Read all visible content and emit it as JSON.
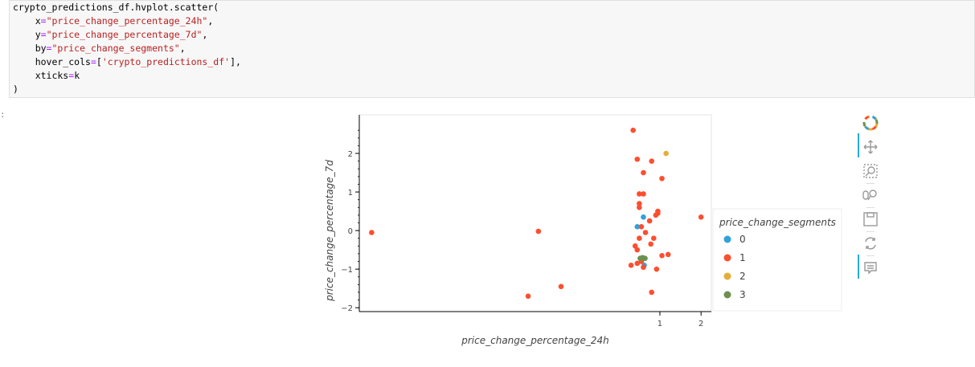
{
  "code": {
    "lines": [
      "crypto_predictions_df.hvplot.scatter(",
      "    x=\"price_change_percentage_24h\",",
      "    y=\"price_change_percentage_7d\",",
      "    by=\"price_change_segments\",",
      "    hover_cols=['crypto_predictions_df'],",
      "    xticks=k",
      ")"
    ]
  },
  "output_prompt": ":",
  "colors": {
    "0": "#30a2da",
    "1": "#fc4f30",
    "2": "#e5ae38",
    "3": "#6d904f"
  },
  "chart_data": {
    "type": "scatter",
    "xlabel": "price_change_percentage_24h",
    "ylabel": "price_change_percentage_7d",
    "xlim": [
      -6.3,
      2.25
    ],
    "ylim": [
      -2.1,
      3.0
    ],
    "xticks": [
      1,
      2
    ],
    "yticks": [
      -2,
      -1,
      0,
      1,
      2
    ],
    "legend_title": "price_change_segments",
    "series": [
      {
        "name": "0",
        "points": [
          [
            0.45,
            0.1
          ],
          [
            0.6,
            0.35
          ],
          [
            0.62,
            -0.9
          ]
        ]
      },
      {
        "name": "1",
        "points": [
          [
            -6.0,
            -0.05
          ],
          [
            -1.95,
            -0.02
          ],
          [
            -2.2,
            -1.7
          ],
          [
            -1.4,
            -1.45
          ],
          [
            0.45,
            1.85
          ],
          [
            0.8,
            1.8
          ],
          [
            0.35,
            2.6
          ],
          [
            0.6,
            1.5
          ],
          [
            0.55,
            0.1
          ],
          [
            0.5,
            0.95
          ],
          [
            0.6,
            0.95
          ],
          [
            0.5,
            0.7
          ],
          [
            0.5,
            0.6
          ],
          [
            0.75,
            0.25
          ],
          [
            0.9,
            0.4
          ],
          [
            0.95,
            0.45
          ],
          [
            0.95,
            0.5
          ],
          [
            1.05,
            1.35
          ],
          [
            2.0,
            0.35
          ],
          [
            0.4,
            -0.4
          ],
          [
            0.45,
            -0.85
          ],
          [
            0.55,
            -0.8
          ],
          [
            0.3,
            -0.9
          ],
          [
            0.5,
            -0.2
          ],
          [
            0.45,
            -0.5
          ],
          [
            0.65,
            -0.05
          ],
          [
            0.78,
            -0.35
          ],
          [
            0.85,
            -0.2
          ],
          [
            1.05,
            -0.65
          ],
          [
            1.2,
            -0.62
          ],
          [
            0.92,
            -1.0
          ],
          [
            0.8,
            -1.6
          ],
          [
            0.6,
            -0.95
          ]
        ]
      },
      {
        "name": "2",
        "points": [
          [
            1.15,
            2.0
          ]
        ]
      },
      {
        "name": "3",
        "points": [
          [
            0.52,
            -0.72
          ],
          [
            0.58,
            -0.7
          ],
          [
            0.6,
            -0.72
          ],
          [
            0.64,
            -0.72
          ]
        ]
      }
    ],
    "grid": false,
    "legend_placement": "right"
  },
  "toolbar": {
    "tools": [
      {
        "name": "bokeh-logo-icon"
      },
      {
        "name": "pan-tool-icon",
        "active": true
      },
      {
        "name": "box-zoom-tool-icon"
      },
      {
        "name": "wheel-zoom-tool-icon"
      },
      {
        "name": "save-tool-icon"
      },
      {
        "name": "reset-tool-icon"
      },
      {
        "name": "hover-tool-icon",
        "active": true
      }
    ]
  }
}
